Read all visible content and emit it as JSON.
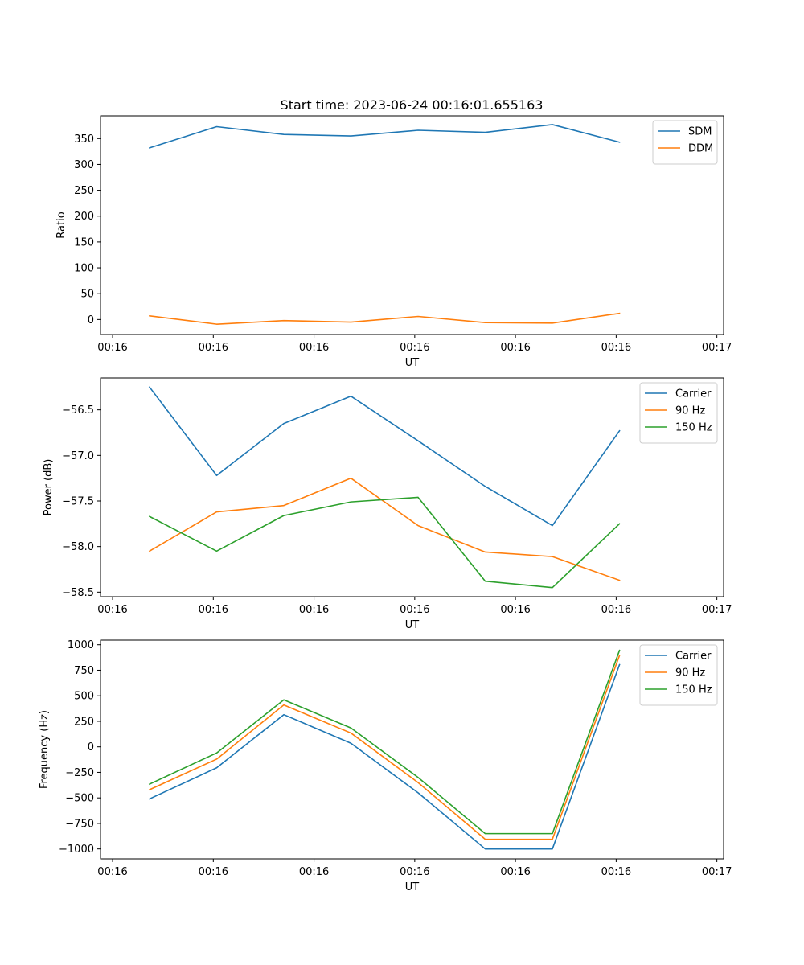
{
  "title": "Start time: 2023-06-24 00:16:01.655163",
  "chart_data": [
    {
      "type": "line",
      "title": "Start time: 2023-06-24 00:16:01.655163",
      "xlabel": "UT",
      "ylabel": "Ratio",
      "x": [
        1,
        2,
        3,
        4,
        5,
        6,
        7,
        8
      ],
      "xlim": [
        0.27,
        9.55
      ],
      "xticks": [
        0.45,
        1.95,
        3.45,
        4.95,
        6.45,
        7.95,
        9.45
      ],
      "xtick_labels": [
        "00:16",
        "00:16",
        "00:16",
        "00:16",
        "00:16",
        "00:16",
        "00:17"
      ],
      "ylim": [
        -29,
        394
      ],
      "yticks": [
        0,
        50,
        100,
        150,
        200,
        250,
        300,
        350
      ],
      "ytick_labels": [
        "0",
        "50",
        "100",
        "150",
        "200",
        "250",
        "300",
        "350"
      ],
      "legend": "top-right",
      "series": [
        {
          "name": "SDM",
          "color": "#1f77b4",
          "values": [
            332,
            373,
            358,
            355,
            366,
            362,
            377,
            343
          ]
        },
        {
          "name": "DDM",
          "color": "#ff7f0e",
          "values": [
            7,
            -9,
            -2,
            -5,
            6,
            -6,
            -7,
            12
          ]
        }
      ]
    },
    {
      "type": "line",
      "title": "",
      "xlabel": "UT",
      "ylabel": "Power (dB)",
      "x": [
        1,
        2,
        3,
        4,
        5,
        6,
        7,
        8
      ],
      "xlim": [
        0.27,
        9.55
      ],
      "xticks": [
        0.45,
        1.95,
        3.45,
        4.95,
        6.45,
        7.95,
        9.45
      ],
      "xtick_labels": [
        "00:16",
        "00:16",
        "00:16",
        "00:16",
        "00:16",
        "00:16",
        "00:17"
      ],
      "ylim": [
        -58.55,
        -56.15
      ],
      "yticks": [
        -58.5,
        -58.0,
        -57.5,
        -57.0,
        -56.5
      ],
      "ytick_labels": [
        "−58.5",
        "−58.0",
        "−57.5",
        "−57.0",
        "−56.5"
      ],
      "legend": "top-right",
      "series": [
        {
          "name": "Carrier",
          "color": "#1f77b4",
          "values": [
            -56.25,
            -57.22,
            -56.65,
            -56.35,
            -56.84,
            -57.34,
            -57.77,
            -56.73
          ]
        },
        {
          "name": "90 Hz",
          "color": "#ff7f0e",
          "values": [
            -58.05,
            -57.62,
            -57.55,
            -57.25,
            -57.77,
            -58.06,
            -58.11,
            -58.37
          ]
        },
        {
          "name": "150 Hz",
          "color": "#2ca02c",
          "values": [
            -57.67,
            -58.05,
            -57.66,
            -57.51,
            -57.46,
            -58.38,
            -58.45,
            -57.75
          ]
        }
      ]
    },
    {
      "type": "line",
      "title": "",
      "xlabel": "UT",
      "ylabel": "Frequency (Hz)",
      "x": [
        1,
        2,
        3,
        4,
        5,
        6,
        7,
        8
      ],
      "xlim": [
        0.27,
        9.55
      ],
      "xticks": [
        0.45,
        1.95,
        3.45,
        4.95,
        6.45,
        7.95,
        9.45
      ],
      "xtick_labels": [
        "00:16",
        "00:16",
        "00:16",
        "00:16",
        "00:16",
        "00:16",
        "00:17"
      ],
      "ylim": [
        -1097,
        1045
      ],
      "yticks": [
        -1000,
        -750,
        -500,
        -250,
        0,
        250,
        500,
        750,
        1000
      ],
      "ytick_labels": [
        "−1000",
        "−750",
        "−500",
        "−250",
        "0",
        "250",
        "500",
        "750",
        "1000"
      ],
      "legend": "top-right",
      "series": [
        {
          "name": "Carrier",
          "color": "#1f77b4",
          "values": [
            -510,
            -205,
            315,
            35,
            -450,
            -1000,
            -1000,
            805
          ]
        },
        {
          "name": "90 Hz",
          "color": "#ff7f0e",
          "values": [
            -420,
            -120,
            410,
            135,
            -350,
            -905,
            -905,
            895
          ]
        },
        {
          "name": "150 Hz",
          "color": "#2ca02c",
          "values": [
            -365,
            -60,
            460,
            185,
            -300,
            -850,
            -850,
            945
          ]
        }
      ]
    }
  ]
}
